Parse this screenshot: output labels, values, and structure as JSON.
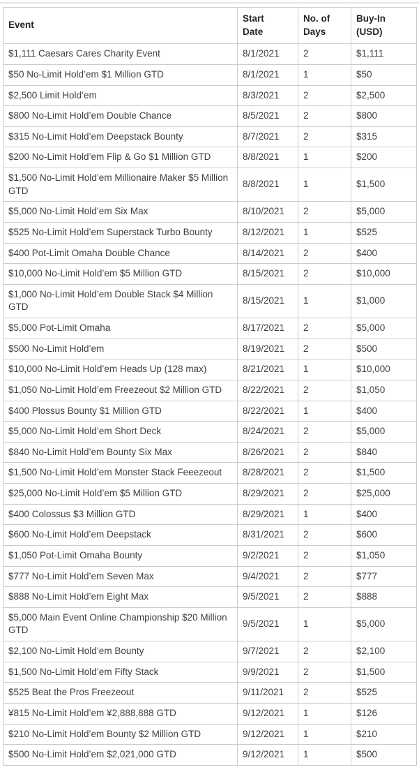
{
  "colors": {
    "border": "#cccccc",
    "header_text": "#262626",
    "body_text": "#404040",
    "row_background": "#ffffff",
    "top_rule": "#e4e4e4"
  },
  "table": {
    "headers": [
      "Event",
      "Start\nDate",
      "No. of\nDays",
      "Buy-In\n(USD)"
    ],
    "rows": [
      {
        "event": "$1,111 Caesars Cares Charity Event",
        "start_date": "8/1/2021",
        "days": "2",
        "buy_in": "$1,111"
      },
      {
        "event": "$50 No-Limit Hold’em $1 Million GTD",
        "start_date": "8/1/2021",
        "days": "1",
        "buy_in": "$50"
      },
      {
        "event": "$2,500 Limit Hold’em",
        "start_date": "8/3/2021",
        "days": "2",
        "buy_in": "$2,500"
      },
      {
        "event": "$800 No-Limit Hold’em Double Chance",
        "start_date": "8/5/2021",
        "days": "2",
        "buy_in": "$800"
      },
      {
        "event": "$315 No-Limit Hold’em Deepstack Bounty",
        "start_date": "8/7/2021",
        "days": "2",
        "buy_in": "$315"
      },
      {
        "event": "$200 No-Limit Hold’em Flip & Go $1 Million GTD",
        "start_date": "8/8/2021",
        "days": "1",
        "buy_in": "$200"
      },
      {
        "event": "$1,500 No-Limit Hold’em Millionaire Maker $5 Million GTD",
        "start_date": "8/8/2021",
        "days": "1",
        "buy_in": "$1,500"
      },
      {
        "event": "$5,000 No-Limit Hold’em Six Max",
        "start_date": "8/10/2021",
        "days": "2",
        "buy_in": "$5,000"
      },
      {
        "event": "$525 No-Limit Hold’em Superstack Turbo Bounty",
        "start_date": "8/12/2021",
        "days": "1",
        "buy_in": "$525"
      },
      {
        "event": "$400 Pot-Limit Omaha Double Chance",
        "start_date": "8/14/2021",
        "days": "2",
        "buy_in": "$400"
      },
      {
        "event": "$10,000 No-Limit Hold’em $5 Million GTD",
        "start_date": "8/15/2021",
        "days": "2",
        "buy_in": "$10,000"
      },
      {
        "event": "$1,000 No-Limit Hold’em Double Stack $4 Million GTD",
        "start_date": "8/15/2021",
        "days": "1",
        "buy_in": "$1,000"
      },
      {
        "event": "$5,000 Pot-Limit Omaha",
        "start_date": "8/17/2021",
        "days": "2",
        "buy_in": "$5,000"
      },
      {
        "event": "$500 No-Limit Hold’em",
        "start_date": "8/19/2021",
        "days": "2",
        "buy_in": "$500"
      },
      {
        "event": "$10,000 No-Limit Hold’em Heads Up (128 max)",
        "start_date": "8/21/2021",
        "days": "1",
        "buy_in": "$10,000"
      },
      {
        "event": "$1,050 No-Limit Hold’em Freezeout $2 Million GTD",
        "start_date": "8/22/2021",
        "days": "2",
        "buy_in": "$1,050"
      },
      {
        "event": "$400 Plossus Bounty $1 Million GTD",
        "start_date": "8/22/2021",
        "days": "1",
        "buy_in": "$400"
      },
      {
        "event": "$5,000 No-Limit Hold’em Short Deck",
        "start_date": "8/24/2021",
        "days": "2",
        "buy_in": "$5,000"
      },
      {
        "event": "$840 No-Limit Hold’em Bounty Six Max",
        "start_date": "8/26/2021",
        "days": "2",
        "buy_in": "$840"
      },
      {
        "event": "$1,500 No-Limit Hold’em Monster Stack Feeezeout",
        "start_date": "8/28/2021",
        "days": "2",
        "buy_in": "$1,500"
      },
      {
        "event": "$25,000 No-Limit Hold’em $5 Million GTD",
        "start_date": "8/29/2021",
        "days": "2",
        "buy_in": "$25,000"
      },
      {
        "event": "$400 Colossus $3 Million GTD",
        "start_date": "8/29/2021",
        "days": "1",
        "buy_in": "$400"
      },
      {
        "event": "$600 No-Limit Hold’em Deepstack",
        "start_date": "8/31/2021",
        "days": "2",
        "buy_in": "$600"
      },
      {
        "event": "$1,050 Pot-Limit Omaha Bounty",
        "start_date": "9/2/2021",
        "days": "2",
        "buy_in": "$1,050"
      },
      {
        "event": "$777 No-Limit Hold’em Seven Max",
        "start_date": "9/4/2021",
        "days": "2",
        "buy_in": "$777"
      },
      {
        "event": "$888 No-Limit Hold’em Eight Max",
        "start_date": "9/5/2021",
        "days": "2",
        "buy_in": "$888"
      },
      {
        "event": "$5,000 Main Event Online Championship $20 Million GTD",
        "start_date": "9/5/2021",
        "days": "1",
        "buy_in": "$5,000"
      },
      {
        "event": "$2,100 No-Limit Hold’em Bounty",
        "start_date": "9/7/2021",
        "days": "2",
        "buy_in": "$2,100"
      },
      {
        "event": "$1,500 No-Limit Hold’em Fifty Stack",
        "start_date": "9/9/2021",
        "days": "2",
        "buy_in": "$1,500"
      },
      {
        "event": "$525 Beat the Pros Freezeout",
        "start_date": "9/11/2021",
        "days": "2",
        "buy_in": "$525"
      },
      {
        "event": "¥815 No-Limit Hold’em ¥2,888,888 GTD",
        "start_date": "9/12/2021",
        "days": "1",
        "buy_in": "$126"
      },
      {
        "event": "$210 No-Limit Hold’em Bounty $2 Million GTD",
        "start_date": "9/12/2021",
        "days": "1",
        "buy_in": "$210"
      },
      {
        "event": "$500 No-Limit Hold’em $2,021,000 GTD",
        "start_date": "9/12/2021",
        "days": "1",
        "buy_in": "$500"
      }
    ]
  }
}
